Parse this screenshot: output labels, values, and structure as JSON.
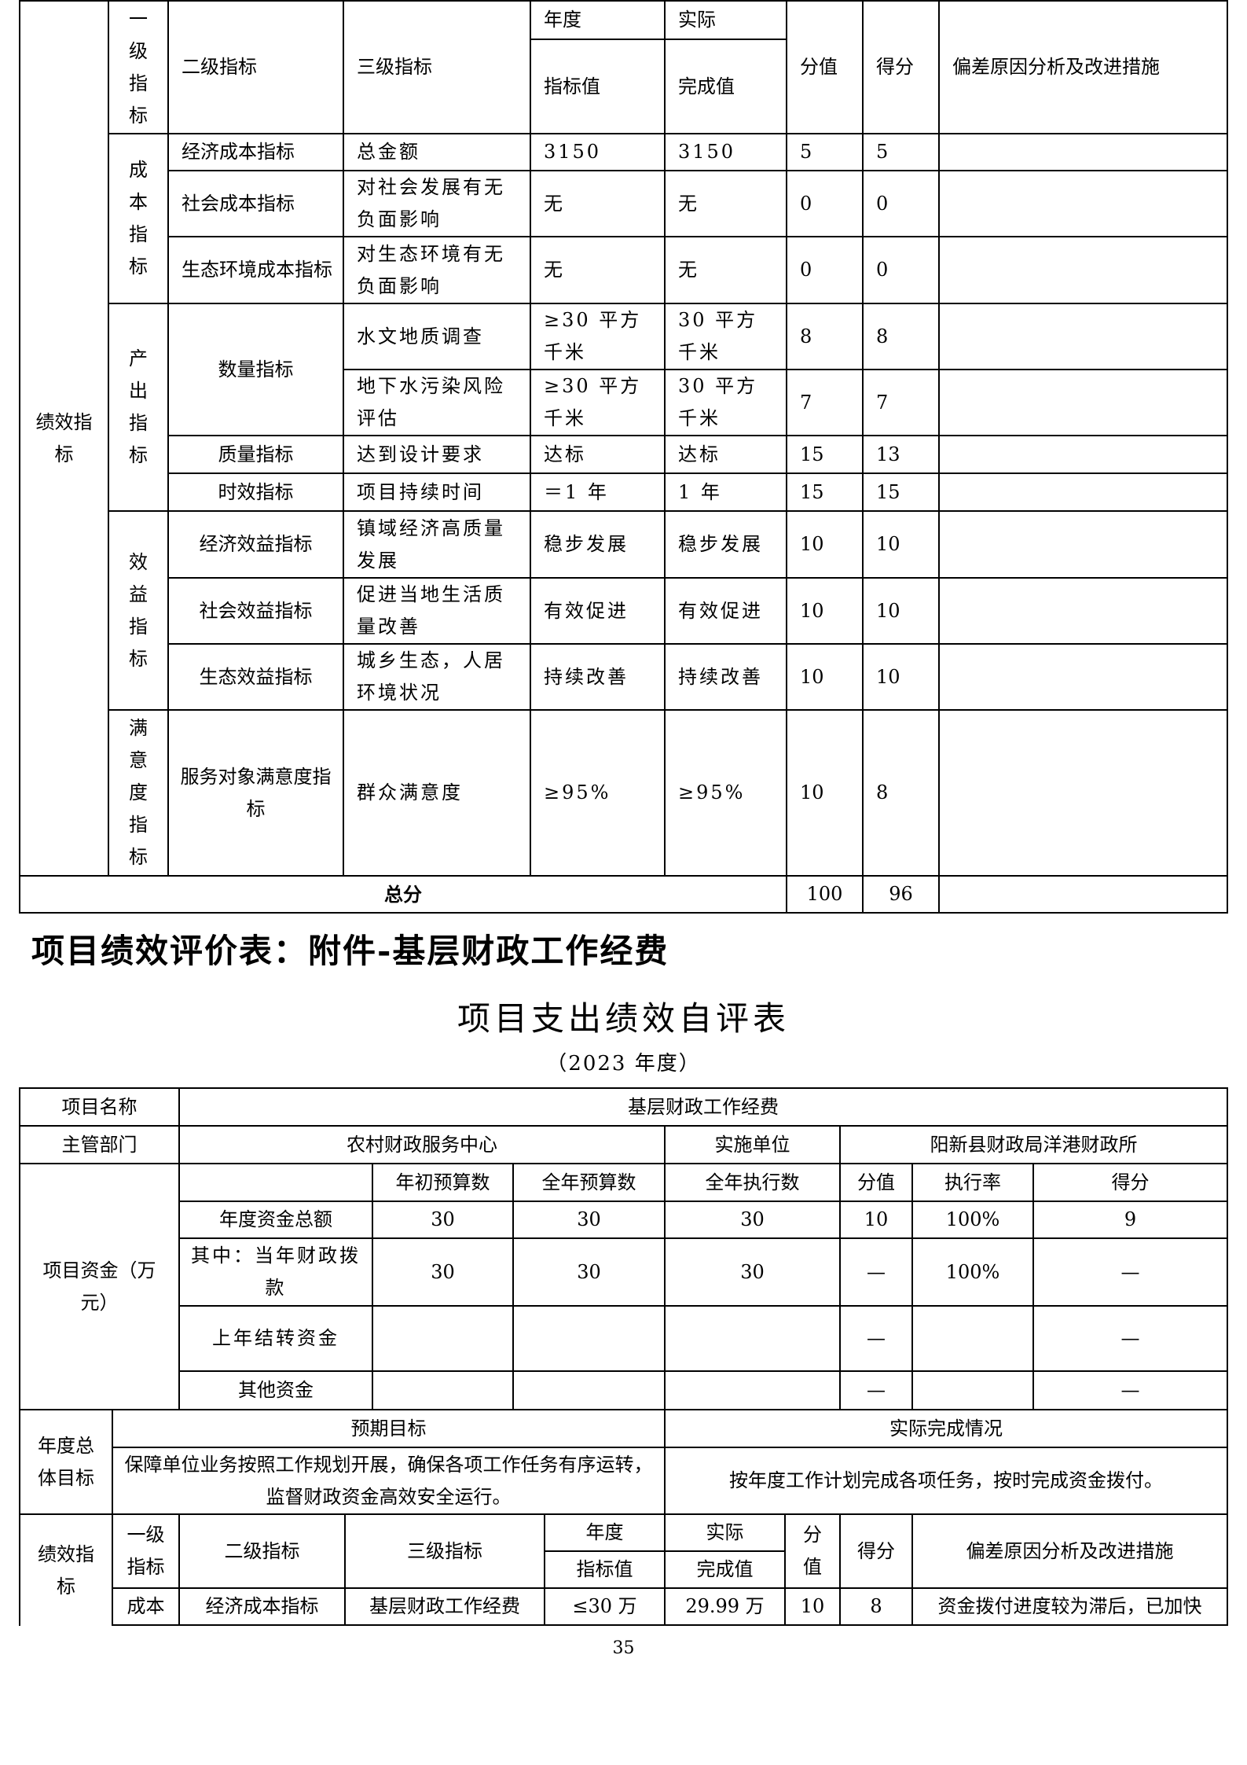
{
  "t1": {
    "perf_label": "绩效指标",
    "header": {
      "l1": "一级指标",
      "l2": "二级指标",
      "l3": "三级指标",
      "year": "年度",
      "target": "指标值",
      "actual": "实际",
      "done": "完成值",
      "score_value": "分值",
      "score": "得分",
      "analysis": "偏差原因分析及改进措施"
    },
    "groups": [
      {
        "label": "成本指标"
      },
      {
        "label": "产出指标"
      },
      {
        "label": "效益指标"
      },
      {
        "label": "满意度指标"
      }
    ],
    "rows": [
      {
        "l2": "经济成本指标",
        "l3": "总金额",
        "target": "3150",
        "done": "3150",
        "score_value": "5",
        "score": "5",
        "analysis": ""
      },
      {
        "l2": "社会成本指标",
        "l3": "对社会发展有无负面影响",
        "target": "无",
        "done": "无",
        "score_value": "0",
        "score": "0",
        "analysis": ""
      },
      {
        "l2": "生态环境成本指标",
        "l3": "对生态环境有无负面影响",
        "target": "无",
        "done": "无",
        "score_value": "0",
        "score": "0",
        "analysis": ""
      },
      {
        "l2": "数量指标",
        "l3": "水文地质调查",
        "target": "≥30 平方千米",
        "done": "30 平方千米",
        "score_value": "8",
        "score": "8",
        "analysis": ""
      },
      {
        "l2": null,
        "l3": "地下水污染风险评估",
        "target": "≥30 平方千米",
        "done": "30 平方千米",
        "score_value": "7",
        "score": "7",
        "analysis": ""
      },
      {
        "l2": "质量指标",
        "l3": "达到设计要求",
        "target": "达标",
        "done": "达标",
        "score_value": "15",
        "score": "13",
        "analysis": ""
      },
      {
        "l2": "时效指标",
        "l3": "项目持续时间",
        "target": "＝1 年",
        "done": "1 年",
        "score_value": "15",
        "score": "15",
        "analysis": ""
      },
      {
        "l2": "经济效益指标",
        "l3": "镇域经济高质量发展",
        "target": "稳步发展",
        "done": "稳步发展",
        "score_value": "10",
        "score": "10",
        "analysis": ""
      },
      {
        "l2": "社会效益指标",
        "l3": "促进当地生活质量改善",
        "target": "有效促进",
        "done": "有效促进",
        "score_value": "10",
        "score": "10",
        "analysis": ""
      },
      {
        "l2": "生态效益指标",
        "l3": "城乡生态，人居环境状况",
        "target": "持续改善",
        "done": "持续改善",
        "score_value": "10",
        "score": "10",
        "analysis": ""
      },
      {
        "l2": "服务对象满意度指标",
        "l3": "群众满意度",
        "target": "≥95%",
        "done": "≥95%",
        "score_value": "10",
        "score": "8",
        "analysis": ""
      }
    ],
    "total": {
      "label": "总分",
      "score_value": "100",
      "score": "96",
      "analysis": ""
    }
  },
  "section_heading": "项目绩效评价表：附件-基层财政工作经费",
  "t2": {
    "title": "项目支出绩效自评表",
    "year": "（2023 年度）",
    "name_label": "项目名称",
    "name": "基层财政工作经费",
    "dept_label": "主管部门",
    "dept": "农村财政服务中心",
    "impl_label": "实施单位",
    "impl": "阳新县财政局洋港财政所",
    "funds_label": "项目资金（万元）",
    "funds_header": [
      "",
      "年初预算数",
      "全年预算数",
      "全年执行数",
      "分值",
      "执行率",
      "得分"
    ],
    "funds_rows": [
      [
        "年度资金总额",
        "30",
        "30",
        "30",
        "10",
        "100%",
        "9"
      ],
      [
        "其中：当年财政拨款",
        "30",
        "30",
        "30",
        "—",
        "100%",
        "—"
      ],
      [
        "上年结转资金",
        "",
        "",
        "",
        "—",
        "",
        "—"
      ],
      [
        "其他资金",
        "",
        "",
        "",
        "—",
        "",
        "—"
      ]
    ],
    "goal_label": "年度总体目标",
    "expected_label": "预期目标",
    "actual_label": "实际完成情况",
    "expected": "保障单位业务按照工作规划开展，确保各项工作任务有序运转，监督财政资金高效安全运行。",
    "actual": "按年度工作计划完成各项任务，按时完成资金拨付。",
    "perf": {
      "label": "绩效指标",
      "header": {
        "l1": "一级指标",
        "l2": "二级指标",
        "l3": "三级指标",
        "year": "年度",
        "target": "指标值",
        "actual": "实际",
        "done": "完成值",
        "score_value": "分值",
        "score": "得分",
        "analysis": "偏差原因分析及改进措施"
      },
      "rows": [
        {
          "l1": "成本",
          "l2": "经济成本指标",
          "l3": "基层财政工作经费",
          "target": "≤30 万",
          "done": "29.99 万",
          "score_value": "10",
          "score": "8",
          "analysis": "资金拨付进度较为滞后，已加快"
        }
      ]
    }
  },
  "page_number": "35"
}
